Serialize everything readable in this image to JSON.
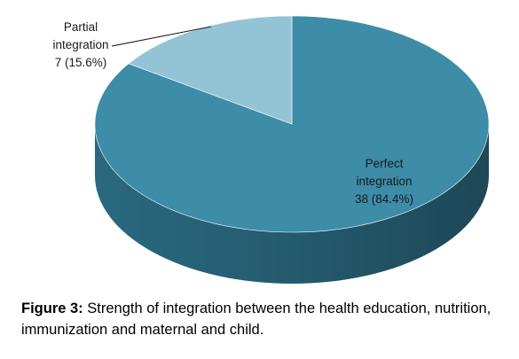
{
  "chart_data": {
    "type": "pie",
    "style": "3d",
    "slices": [
      {
        "name": "Perfect integration",
        "label_lines": [
          "Perfect",
          "integration"
        ],
        "value": 38,
        "percent": 84.4,
        "color": "#3d8ca8",
        "side_color": "#2c6e86"
      },
      {
        "name": "Partial integration",
        "label_lines": [
          "Partial",
          "integration"
        ],
        "value": 7,
        "percent": 15.6,
        "color": "#93c4d6",
        "side_color": "#6ea3b6"
      }
    ],
    "value_labels": [
      "38 (84.4%)",
      "7 (15.6%)"
    ]
  },
  "caption": {
    "label": "Figure 3:",
    "text": " Strength of integration between the health education, nutrition, immunization and maternal and child."
  }
}
